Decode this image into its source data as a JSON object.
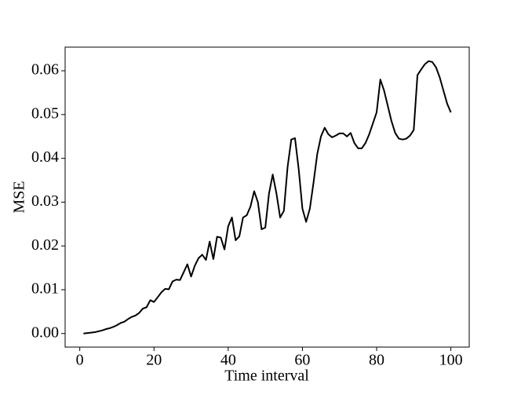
{
  "chart_data": {
    "type": "line",
    "xlabel": "Time interval",
    "ylabel": "MSE",
    "x": [
      1,
      2,
      3,
      4,
      5,
      6,
      7,
      8,
      9,
      10,
      11,
      12,
      13,
      14,
      15,
      16,
      17,
      18,
      19,
      20,
      21,
      22,
      23,
      24,
      25,
      26,
      27,
      28,
      29,
      30,
      31,
      32,
      33,
      34,
      35,
      36,
      37,
      38,
      39,
      40,
      41,
      42,
      43,
      44,
      45,
      46,
      47,
      48,
      49,
      50,
      51,
      52,
      53,
      54,
      55,
      56,
      57,
      58,
      59,
      60,
      61,
      62,
      63,
      64,
      65,
      66,
      67,
      68,
      69,
      70,
      71,
      72,
      73,
      74,
      75,
      76,
      77,
      78,
      79,
      80,
      81,
      82,
      83,
      84,
      85,
      86,
      87,
      88,
      89,
      90,
      91,
      92,
      93,
      94,
      95,
      96,
      97,
      98,
      99,
      100
    ],
    "series": [
      {
        "color": "#000000",
        "values": [
          0.0,
          0.0001,
          0.0002,
          0.0003,
          0.0005,
          0.0007,
          0.001,
          0.0012,
          0.0015,
          0.0019,
          0.0024,
          0.0027,
          0.0033,
          0.0038,
          0.0041,
          0.0047,
          0.0057,
          0.006,
          0.0076,
          0.0072,
          0.0083,
          0.0094,
          0.0102,
          0.0101,
          0.0119,
          0.0123,
          0.0122,
          0.014,
          0.0158,
          0.013,
          0.0155,
          0.0172,
          0.018,
          0.0168,
          0.021,
          0.017,
          0.0221,
          0.0219,
          0.0192,
          0.0245,
          0.0265,
          0.0213,
          0.0222,
          0.0265,
          0.027,
          0.029,
          0.0325,
          0.03,
          0.0238,
          0.0242,
          0.032,
          0.0363,
          0.032,
          0.0265,
          0.028,
          0.038,
          0.0443,
          0.0446,
          0.0375,
          0.0285,
          0.0255,
          0.0285,
          0.0345,
          0.041,
          0.045,
          0.047,
          0.0455,
          0.0448,
          0.0452,
          0.0457,
          0.0457,
          0.045,
          0.0458,
          0.0435,
          0.0423,
          0.0423,
          0.0435,
          0.0455,
          0.048,
          0.0505,
          0.058,
          0.0555,
          0.052,
          0.0485,
          0.0458,
          0.0445,
          0.0443,
          0.0445,
          0.0452,
          0.0465,
          0.059,
          0.0603,
          0.0615,
          0.0622,
          0.062,
          0.0608,
          0.0585,
          0.0555,
          0.0525,
          0.0505
        ]
      }
    ],
    "xlim": [
      -3.95,
      104.95
    ],
    "ylim": [
      -0.0031,
      0.0654
    ],
    "xticks": [
      0,
      20,
      40,
      60,
      80,
      100
    ],
    "yticks": [
      {
        "value": 0,
        "label": "0.00"
      },
      {
        "value": 0.01,
        "label": "0.01"
      },
      {
        "value": 0.02,
        "label": "0.02"
      },
      {
        "value": 0.03,
        "label": "0.03"
      },
      {
        "value": 0.04,
        "label": "0.04"
      },
      {
        "value": 0.05,
        "label": "0.05"
      },
      {
        "value": 0.06,
        "label": "0.06"
      }
    ]
  }
}
